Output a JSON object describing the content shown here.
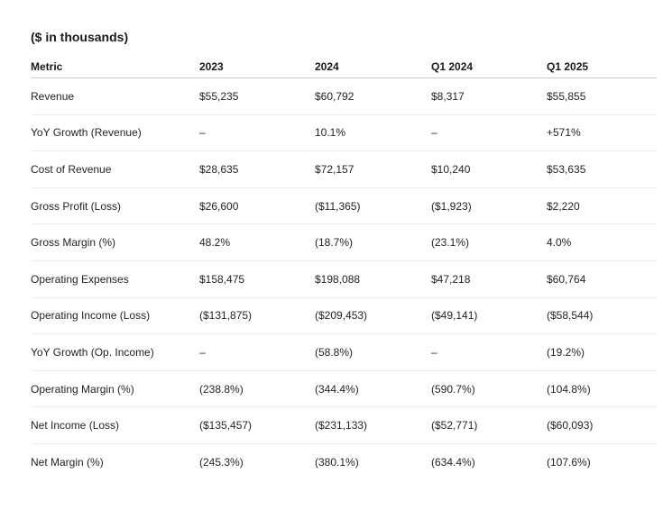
{
  "caption": "($ in thousands)",
  "columns": [
    "Metric",
    "2023",
    "2024",
    "Q1 2024",
    "Q1 2025"
  ],
  "rows": [
    [
      "Revenue",
      "$55,235",
      "$60,792",
      "$8,317",
      "$55,855"
    ],
    [
      "YoY Growth (Revenue)",
      "–",
      "10.1%",
      "–",
      "+571%"
    ],
    [
      "Cost of Revenue",
      "$28,635",
      "$72,157",
      "$10,240",
      "$53,635"
    ],
    [
      "Gross Profit (Loss)",
      "$26,600",
      "($11,365)",
      "($1,923)",
      "$2,220"
    ],
    [
      "Gross Margin (%)",
      "48.2%",
      "(18.7%)",
      "(23.1%)",
      "4.0%"
    ],
    [
      "Operating Expenses",
      "$158,475",
      "$198,088",
      "$47,218",
      "$60,764"
    ],
    [
      "Operating Income (Loss)",
      "($131,875)",
      "($209,453)",
      "($49,141)",
      "($58,544)"
    ],
    [
      "YoY Growth (Op. Income)",
      "–",
      "(58.8%)",
      "–",
      "(19.2%)"
    ],
    [
      "Operating Margin (%)",
      "(238.8%)",
      "(344.4%)",
      "(590.7%)",
      "(104.8%)"
    ],
    [
      "Net Income (Loss)",
      "($135,457)",
      "($231,133)",
      "($52,771)",
      "($60,093)"
    ],
    [
      "Net Margin (%)",
      "(245.3%)",
      "(380.1%)",
      "(634.4%)",
      "(107.6%)"
    ]
  ]
}
